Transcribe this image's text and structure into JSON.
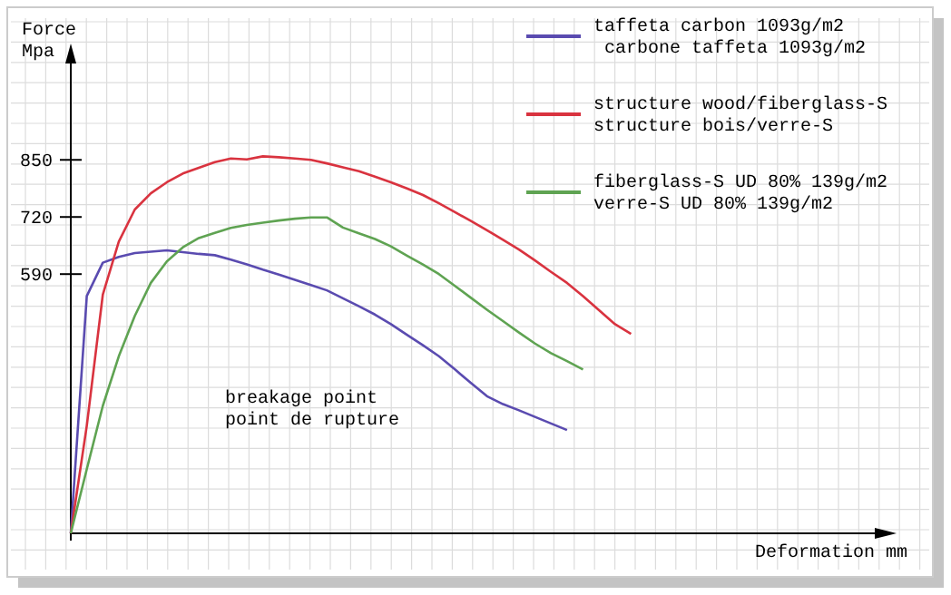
{
  "chart_data": {
    "type": "line",
    "ylabel": "Force\nMpa",
    "ylim": [
      0,
      1090
    ],
    "categories": [
      null,
      null,
      null,
      null,
      null,
      null,
      null,
      null,
      null,
      null,
      null,
      null,
      null,
      null,
      null,
      null,
      null,
      null,
      null,
      null,
      null,
      null,
      null,
      null,
      null,
      null,
      null,
      null,
      null,
      null,
      null,
      null,
      null,
      null,
      null,
      null
    ],
    "yticks": [
      590,
      720,
      850
    ],
    "grid": true,
    "legend": "top right",
    "marker": "none",
    "line_style": "solid",
    "annotations": [
      "breakage point\npoint de rupture",
      "Deformation mm"
    ],
    "series": [
      {
        "name": "taffeta carbon 1093g/m2\n carbone taffeta 1093g/m2",
        "color": "#5a4bb0",
        "values": [
          0,
          540,
          616,
          629,
          638,
          641,
          644,
          640,
          636,
          633,
          623,
          612,
          600,
          589,
          577,
          565,
          553,
          535,
          517,
          498,
          476,
          452,
          428,
          403,
          373,
          342,
          312,
          294,
          280,
          265,
          250,
          235,
          null,
          null,
          null,
          null
        ]
      },
      {
        "name": "structure wood/fiberglass-S\nstructure bois/verre-S",
        "color": "#d9333f",
        "values": [
          0,
          245,
          543,
          664,
          737,
          774,
          799,
          819,
          832,
          845,
          853,
          851,
          858,
          856,
          853,
          850,
          842,
          833,
          824,
          812,
          799,
          785,
          770,
          751,
          731,
          711,
          690,
          668,
          646,
          621,
          595,
          570,
          540,
          508,
          476,
          454
        ]
      },
      {
        "name": "fiberglass-S UD 80% 139g/m2\nverre-S UD 80% 139g/m2",
        "color": "#5fa352",
        "values": [
          0,
          146,
          290,
          403,
          495,
          570,
          619,
          651,
          672,
          684,
          695,
          702,
          707,
          712,
          716,
          719,
          719,
          696,
          683,
          670,
          653,
          632,
          612,
          590,
          563,
          536,
          509,
          483,
          457,
          432,
          410,
          392,
          373,
          null,
          null,
          null
        ]
      }
    ]
  }
}
